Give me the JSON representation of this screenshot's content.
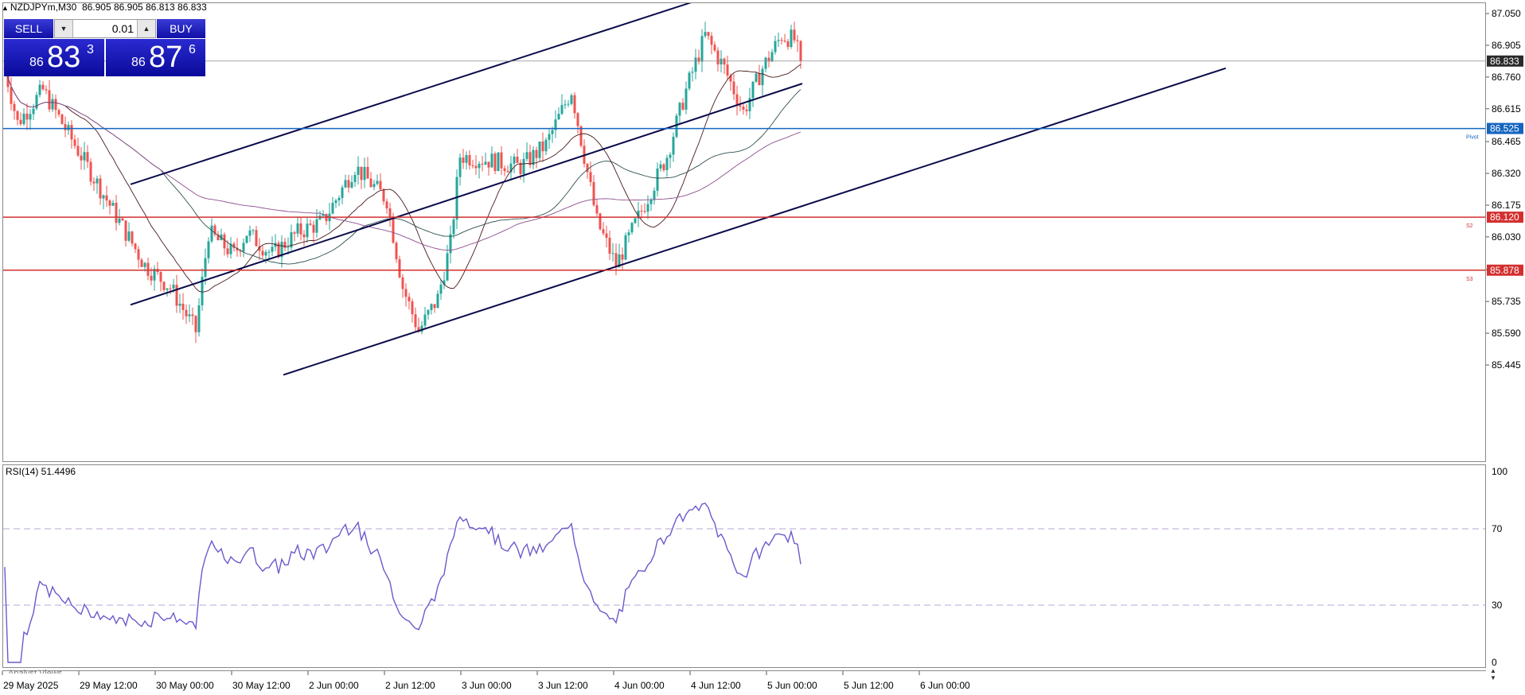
{
  "header": {
    "symbol": "NZDJPYm,M30",
    "ohlc": "86.905 86.905 86.813 86.833"
  },
  "trade_panel": {
    "sell_label": "SELL",
    "buy_label": "BUY",
    "lot_value": "0.01",
    "sell_price": {
      "prefix": "86",
      "big": "83",
      "sup": "3"
    },
    "buy_price": {
      "prefix": "86",
      "big": "87",
      "sup": "6"
    }
  },
  "price_axis": {
    "ticks": [
      "87.050",
      "86.905",
      "86.760",
      "86.615",
      "86.465",
      "86.320",
      "86.175",
      "86.030",
      "85.880",
      "85.735",
      "85.590",
      "85.445"
    ],
    "current_price": "86.833"
  },
  "levels": [
    {
      "name": "Pivot",
      "price": 86.525,
      "label": "86.525",
      "color": "#1565c0"
    },
    {
      "name": "S2",
      "price": 86.12,
      "label": "86.120",
      "color": "#d32f2f"
    },
    {
      "name": "S3",
      "price": 85.878,
      "label": "85.878",
      "color": "#d32f2f"
    }
  ],
  "time_axis": [
    "29 May 2025",
    "29 May 12:00",
    "30 May 00:00",
    "30 May 12:00",
    "2 Jun 00:00",
    "2 Jun 12:00",
    "3 Jun 00:00",
    "3 Jun 12:00",
    "4 Jun 00:00",
    "4 Jun 12:00",
    "5 Jun 00:00",
    "5 Jun 12:00",
    "6 Jun 00:00"
  ],
  "rsi": {
    "label": "RSI(14) 51.4496",
    "ticks": [
      "100",
      "70",
      "30",
      "0"
    ]
  },
  "analyst_views_label": "Analyst Views",
  "colors": {
    "bull": "#26a69a",
    "bear": "#ef5350",
    "channel": "#0a0a4a",
    "rsi_line": "#6a5acd",
    "ma_fast": "#4a1a1a",
    "ma_mid": "#2f4f4f",
    "ma_slow": "#8e4f8e"
  },
  "chart_data": {
    "type": "candlestick",
    "symbol": "NZDJPYm",
    "timeframe": "M30",
    "ylim": [
      85.4,
      87.1
    ],
    "price_path": [
      {
        "t": 0,
        "p": 86.8
      },
      {
        "t": 4,
        "p": 86.55
      },
      {
        "t": 12,
        "p": 86.7
      },
      {
        "t": 20,
        "p": 86.5
      },
      {
        "t": 28,
        "p": 86.3
      },
      {
        "t": 36,
        "p": 86.1
      },
      {
        "t": 44,
        "p": 85.9
      },
      {
        "t": 52,
        "p": 85.8
      },
      {
        "t": 60,
        "p": 85.6
      },
      {
        "t": 64,
        "p": 86.05
      },
      {
        "t": 72,
        "p": 85.95
      },
      {
        "t": 76,
        "p": 86.05
      },
      {
        "t": 84,
        "p": 85.95
      },
      {
        "t": 92,
        "p": 86.05
      },
      {
        "t": 100,
        "p": 86.1
      },
      {
        "t": 110,
        "p": 86.35
      },
      {
        "t": 120,
        "p": 86.2
      },
      {
        "t": 125,
        "p": 85.8
      },
      {
        "t": 130,
        "p": 85.6
      },
      {
        "t": 136,
        "p": 85.75
      },
      {
        "t": 140,
        "p": 86.0
      },
      {
        "t": 143,
        "p": 86.4
      },
      {
        "t": 152,
        "p": 86.38
      },
      {
        "t": 162,
        "p": 86.35
      },
      {
        "t": 170,
        "p": 86.45
      },
      {
        "t": 178,
        "p": 86.7
      },
      {
        "t": 182,
        "p": 86.4
      },
      {
        "t": 186,
        "p": 86.1
      },
      {
        "t": 192,
        "p": 85.9
      },
      {
        "t": 200,
        "p": 86.15
      },
      {
        "t": 208,
        "p": 86.4
      },
      {
        "t": 214,
        "p": 86.7
      },
      {
        "t": 220,
        "p": 86.95
      },
      {
        "t": 226,
        "p": 86.8
      },
      {
        "t": 232,
        "p": 86.6
      },
      {
        "t": 238,
        "p": 86.8
      },
      {
        "t": 244,
        "p": 86.95
      },
      {
        "t": 248,
        "p": 86.93
      },
      {
        "t": 250,
        "p": 86.83
      }
    ],
    "channel_lines": [
      {
        "t1": 40,
        "p1": 86.27,
        "t2": 216,
        "p2": 87.1
      },
      {
        "t1": 40,
        "p1": 85.72,
        "t2": 251,
        "p2": 86.73
      },
      {
        "t1": 88,
        "p1": 85.4,
        "t2": 384,
        "p2": 86.8
      }
    ],
    "rsi_period": 14,
    "rsi_last": 51.4496,
    "rsi_levels": [
      70,
      30
    ]
  }
}
